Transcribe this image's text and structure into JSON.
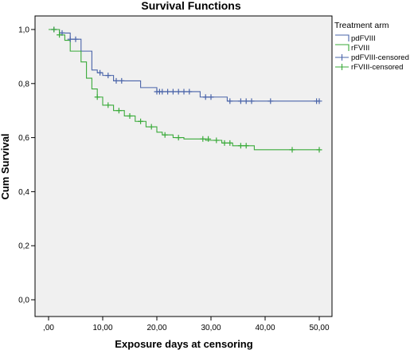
{
  "chart_data": {
    "type": "line",
    "title": "Survival Functions",
    "xlabel": "Exposure days at censoring",
    "ylabel": "Cum Survival",
    "xlim": [
      0,
      50
    ],
    "ylim": [
      0,
      1
    ],
    "x_ticks": [
      0,
      10,
      20,
      30,
      40,
      50
    ],
    "x_tick_labels": [
      ",00",
      "10,00",
      "20,00",
      "30,00",
      "40,00",
      "50,00"
    ],
    "y_ticks": [
      0,
      0.2,
      0.4,
      0.6,
      0.8,
      1.0
    ],
    "y_tick_labels": [
      "0,0",
      "0,2",
      "0,4",
      "0,6",
      "0,8",
      "1,0"
    ],
    "grid": false,
    "legend_title": "Treatment arm",
    "legend_position": "right",
    "series": [
      {
        "name": "pdFVIII",
        "color": "#4a64a9",
        "step_x": [
          0,
          2,
          4,
          6,
          8,
          9,
          10,
          12,
          17,
          20,
          28,
          33,
          50
        ],
        "step_y": [
          1.0,
          0.987,
          0.964,
          0.92,
          0.85,
          0.84,
          0.83,
          0.81,
          0.785,
          0.77,
          0.75,
          0.735,
          0.735
        ]
      },
      {
        "name": "rFVIII",
        "color": "#3aaa3a",
        "step_x": [
          0,
          2,
          3,
          4,
          6,
          7,
          8,
          9,
          10,
          12,
          14,
          16,
          18,
          20,
          21,
          23,
          25,
          29,
          32,
          34,
          38,
          50
        ],
        "step_y": [
          1.0,
          0.98,
          0.96,
          0.92,
          0.88,
          0.82,
          0.78,
          0.75,
          0.72,
          0.7,
          0.68,
          0.66,
          0.64,
          0.62,
          0.61,
          0.6,
          0.595,
          0.59,
          0.58,
          0.57,
          0.555,
          0.555
        ]
      }
    ],
    "censored": [
      {
        "name": "pdFVIII-censored",
        "color": "#4a64a9",
        "x": [
          1,
          2.5,
          4,
          5,
          9.5,
          11,
          12.5,
          13.5,
          20,
          20.5,
          21,
          22,
          23,
          24,
          25,
          26,
          29,
          30,
          33.5,
          35.5,
          36.5,
          37.5,
          41,
          49.5,
          50
        ],
        "y": [
          1.0,
          0.987,
          0.964,
          0.964,
          0.84,
          0.83,
          0.81,
          0.81,
          0.77,
          0.77,
          0.77,
          0.77,
          0.77,
          0.77,
          0.77,
          0.77,
          0.75,
          0.75,
          0.735,
          0.735,
          0.735,
          0.735,
          0.735,
          0.735,
          0.735
        ]
      },
      {
        "name": "rFVIII-censored",
        "color": "#3aaa3a",
        "x": [
          1,
          2,
          9,
          11,
          13,
          15,
          17,
          19,
          21.5,
          24,
          28.5,
          29.5,
          31,
          32.5,
          33.5,
          35.5,
          36.5,
          45,
          50
        ],
        "y": [
          1.0,
          0.98,
          0.75,
          0.72,
          0.7,
          0.68,
          0.66,
          0.64,
          0.61,
          0.6,
          0.595,
          0.595,
          0.59,
          0.58,
          0.58,
          0.57,
          0.57,
          0.555,
          0.555
        ]
      }
    ]
  }
}
